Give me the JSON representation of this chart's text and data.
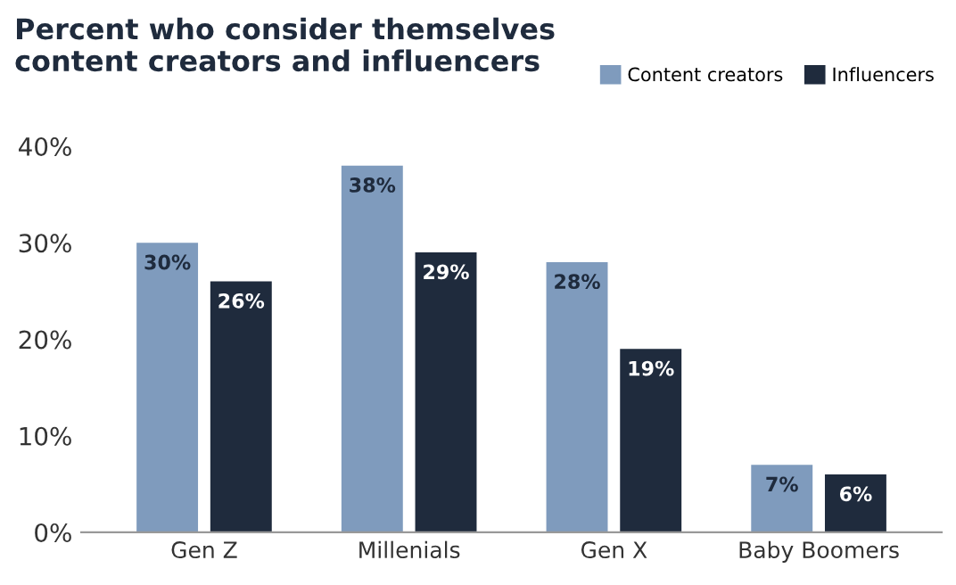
{
  "chart_data": {
    "type": "bar",
    "title": "Percent who consider themselves\ncontent creators and influencers",
    "categories": [
      "Gen Z",
      "Millenials",
      "Gen X",
      "Baby Boomers"
    ],
    "series": [
      {
        "name": "Content creators",
        "color": "#7f9bbd",
        "values": [
          30,
          38,
          28,
          7
        ],
        "value_labels": [
          "30%",
          "38%",
          "28%",
          "7%"
        ]
      },
      {
        "name": "Influencers",
        "color": "#1f2b3d",
        "values": [
          26,
          29,
          19,
          6
        ],
        "value_labels": [
          "26%",
          "29%",
          "19%",
          "6%"
        ]
      }
    ],
    "ylim": [
      0,
      40
    ],
    "yticks": [
      {
        "value": 0,
        "label": "0%"
      },
      {
        "value": 10,
        "label": "10%"
      },
      {
        "value": 20,
        "label": "20%"
      },
      {
        "value": 30,
        "label": "30%"
      },
      {
        "value": 40,
        "label": "40%"
      }
    ],
    "grid": false,
    "legend": "top right"
  }
}
